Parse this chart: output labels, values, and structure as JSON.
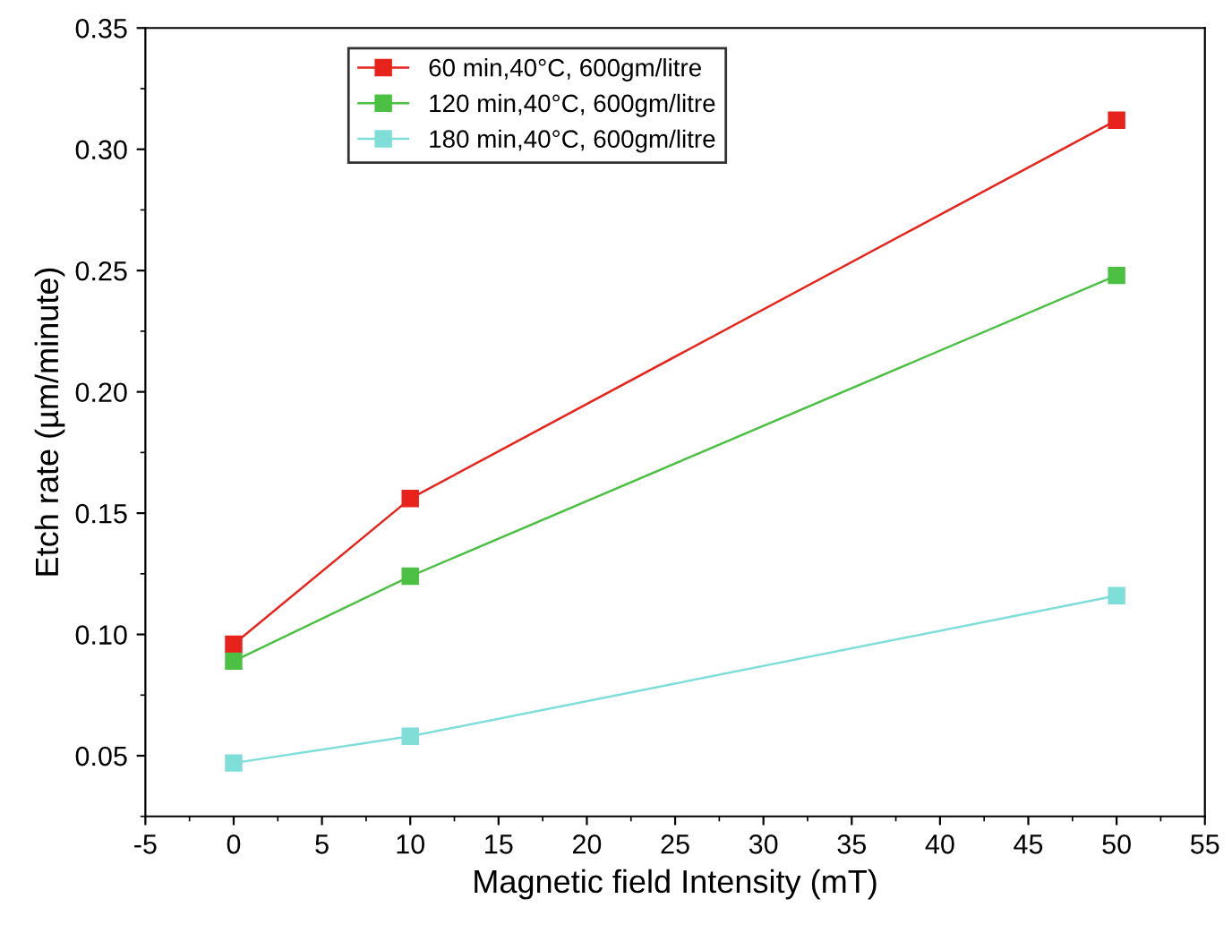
{
  "chart_data": {
    "type": "line",
    "xlabel": "Magnetic field Intensity (mT)",
    "ylabel": "Etch rate (µm/minute)",
    "x": [
      0,
      10,
      50
    ],
    "series": [
      {
        "name": "60 min,40°C, 600gm/litre",
        "color": "#e8231c",
        "values": [
          0.096,
          0.156,
          0.312
        ]
      },
      {
        "name": "120 min,40°C, 600gm/litre",
        "color": "#4cc043",
        "values": [
          0.089,
          0.124,
          0.248
        ]
      },
      {
        "name": "180 min,40°C, 600gm/litre",
        "color": "#7fded8",
        "values": [
          0.047,
          0.058,
          0.116
        ]
      }
    ],
    "xlim": [
      -5,
      55
    ],
    "xticks": [
      -5,
      0,
      5,
      10,
      15,
      20,
      25,
      30,
      35,
      40,
      45,
      50,
      55
    ],
    "ylim": [
      0.025,
      0.35
    ],
    "yticks": [
      {
        "value": 0.05,
        "label": "0.05"
      },
      {
        "value": 0.1,
        "label": "0.10"
      },
      {
        "value": 0.15,
        "label": "0.15"
      },
      {
        "value": 0.2,
        "label": "0.20"
      },
      {
        "value": 0.25,
        "label": "0.25"
      },
      {
        "value": 0.3,
        "label": "0.30"
      },
      {
        "value": 0.35,
        "label": "0.35"
      }
    ],
    "marker": "square",
    "line_style": "solid",
    "grid": false,
    "legend": "top left"
  }
}
